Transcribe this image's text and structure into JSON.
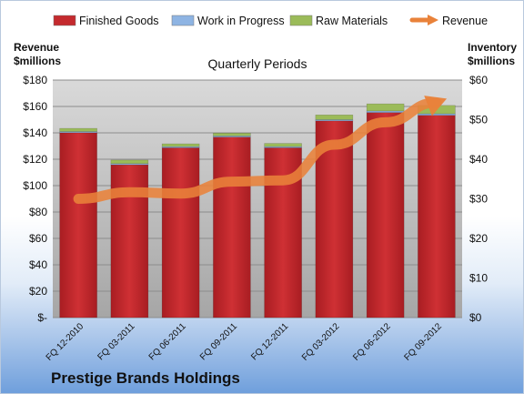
{
  "colors": {
    "finished_goods": "#c42a2e",
    "work_in_progress": "#8eb4e3",
    "raw_materials": "#9bbb59",
    "revenue": "#e9823a"
  },
  "chart_data": {
    "type": "bar",
    "subtitle": "Quarterly Periods",
    "ylabel_left": [
      "Revenue",
      "$millions"
    ],
    "ylabel_right": [
      "Inventory",
      "$millions"
    ],
    "categories": [
      "FQ 12-2010",
      "FQ 03-2011",
      "FQ 06-2011",
      "FQ 09-2011",
      "FQ 12-2011",
      "FQ 03-2012",
      "FQ 06-2012",
      "FQ 09-2012"
    ],
    "left_axis": {
      "ylim": [
        0,
        180
      ],
      "ticks": [
        0,
        20,
        40,
        60,
        80,
        100,
        120,
        140,
        160,
        180
      ],
      "tick_labels": [
        "$-",
        "$20",
        "$40",
        "$60",
        "$80",
        "$100",
        "$120",
        "$140",
        "$160",
        "$180"
      ]
    },
    "right_axis": {
      "ylim": [
        0,
        60
      ],
      "ticks": [
        0,
        10,
        20,
        30,
        40,
        50,
        60
      ],
      "tick_labels": [
        "$0",
        "$10",
        "$20",
        "$30",
        "$40",
        "$50",
        "$60"
      ]
    },
    "series": [
      {
        "name": "Finished Goods",
        "kind": "stacked-bar",
        "axis": "right",
        "values": [
          46.7,
          38.6,
          42.9,
          45.6,
          42.9,
          49.7,
          51.8,
          51.1
        ]
      },
      {
        "name": "Work in Progress",
        "kind": "stacked-bar",
        "axis": "right",
        "values": [
          0.3,
          0.3,
          0.3,
          0.3,
          0.3,
          0.3,
          0.4,
          0.4
        ]
      },
      {
        "name": "Raw Materials",
        "kind": "stacked-bar",
        "axis": "right",
        "values": [
          0.8,
          0.9,
          0.7,
          0.7,
          0.8,
          1.2,
          1.8,
          2.1
        ]
      },
      {
        "name": "Revenue",
        "kind": "line",
        "axis": "left",
        "values": [
          90,
          95,
          94,
          103,
          104,
          131,
          148,
          163
        ]
      }
    ],
    "legend_position": "top",
    "grid": true
  },
  "footer": {
    "company": "Prestige Brands Holdings"
  }
}
